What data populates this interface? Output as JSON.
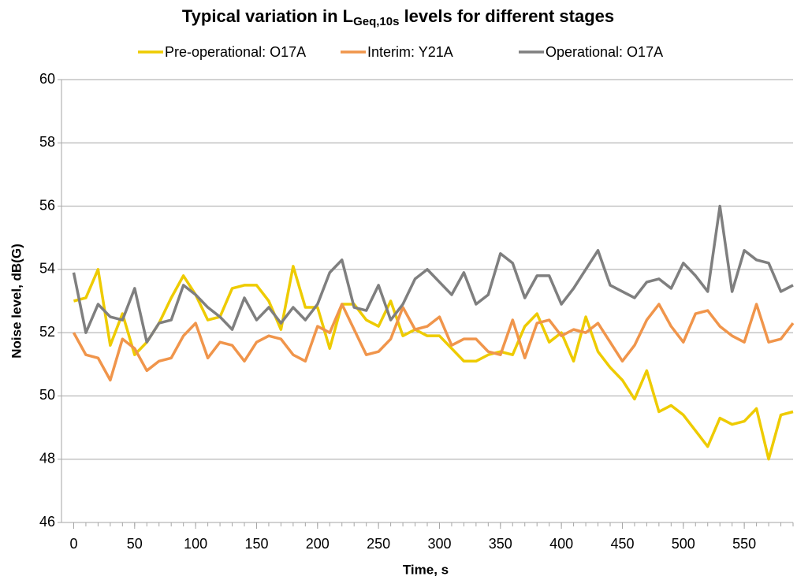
{
  "chart_data": {
    "type": "line",
    "title": [
      "Typical variation in L",
      "Geq,10s",
      " levels for different stages"
    ],
    "xlabel": "Time, s",
    "ylabel": "Noise level, dB(G)",
    "x": [
      0,
      10,
      20,
      30,
      40,
      50,
      60,
      70,
      80,
      90,
      100,
      110,
      120,
      130,
      140,
      150,
      160,
      170,
      180,
      190,
      200,
      210,
      220,
      230,
      240,
      250,
      260,
      270,
      280,
      290,
      300,
      310,
      320,
      330,
      340,
      350,
      360,
      370,
      380,
      390,
      400,
      410,
      420,
      430,
      440,
      450,
      460,
      470,
      480,
      490,
      500,
      510,
      520,
      530,
      540,
      550,
      560,
      570,
      580,
      590
    ],
    "series": [
      {
        "name": "Pre-operational: O17A",
        "color": "#eecb00",
        "values": [
          53.0,
          53.1,
          54.0,
          51.6,
          52.6,
          51.3,
          51.7,
          52.3,
          53.1,
          53.8,
          53.2,
          52.4,
          52.5,
          53.4,
          53.5,
          53.5,
          53.0,
          52.1,
          54.1,
          52.8,
          52.8,
          51.5,
          52.9,
          52.9,
          52.4,
          52.2,
          53.0,
          51.9,
          52.1,
          51.9,
          51.9,
          51.5,
          51.1,
          51.1,
          51.3,
          51.4,
          51.3,
          52.2,
          52.6,
          51.7,
          52.0,
          51.1,
          52.5,
          51.4,
          50.9,
          50.5,
          49.9,
          50.8,
          49.5,
          49.7,
          49.4,
          48.9,
          48.4,
          49.3,
          49.1,
          49.2,
          49.6,
          48.0,
          49.4,
          49.5
        ]
      },
      {
        "name": "Interim: Y21A",
        "color": "#f0954b",
        "values": [
          52.0,
          51.3,
          51.2,
          50.5,
          51.8,
          51.5,
          50.8,
          51.1,
          51.2,
          51.9,
          52.3,
          51.2,
          51.7,
          51.6,
          51.1,
          51.7,
          51.9,
          51.8,
          51.3,
          51.1,
          52.2,
          52.0,
          52.9,
          52.1,
          51.3,
          51.4,
          51.8,
          52.8,
          52.1,
          52.2,
          52.5,
          51.6,
          51.8,
          51.8,
          51.4,
          51.3,
          52.4,
          51.2,
          52.3,
          52.4,
          51.9,
          52.1,
          52.0,
          52.3,
          51.7,
          51.1,
          51.6,
          52.4,
          52.9,
          52.2,
          51.7,
          52.6,
          52.7,
          52.2,
          51.9,
          51.7,
          52.9,
          51.7,
          51.8,
          52.3
        ]
      },
      {
        "name": "Operational: O17A",
        "color": "#7f7f7f",
        "values": [
          53.9,
          52.0,
          52.9,
          52.5,
          52.4,
          53.4,
          51.7,
          52.3,
          52.4,
          53.5,
          53.2,
          52.8,
          52.5,
          52.1,
          53.1,
          52.4,
          52.8,
          52.3,
          52.8,
          52.4,
          52.9,
          53.9,
          54.3,
          52.8,
          52.7,
          53.5,
          52.4,
          52.9,
          53.7,
          54.0,
          53.6,
          53.2,
          53.9,
          52.9,
          53.2,
          54.5,
          54.2,
          53.1,
          53.8,
          53.8,
          52.9,
          53.4,
          54.0,
          54.6,
          53.5,
          53.3,
          53.1,
          53.6,
          53.7,
          53.4,
          54.2,
          53.8,
          53.3,
          56.0,
          53.3,
          54.6,
          54.3,
          54.2,
          53.3,
          53.5
        ]
      }
    ],
    "xlim": [
      -10,
      590
    ],
    "xticks": [
      0,
      50,
      100,
      150,
      200,
      250,
      300,
      350,
      400,
      450,
      500,
      550
    ],
    "ylim": [
      46,
      60
    ],
    "yticks": [
      46,
      48,
      50,
      52,
      54,
      56,
      58,
      60
    ],
    "grid": true,
    "legend": "top"
  }
}
